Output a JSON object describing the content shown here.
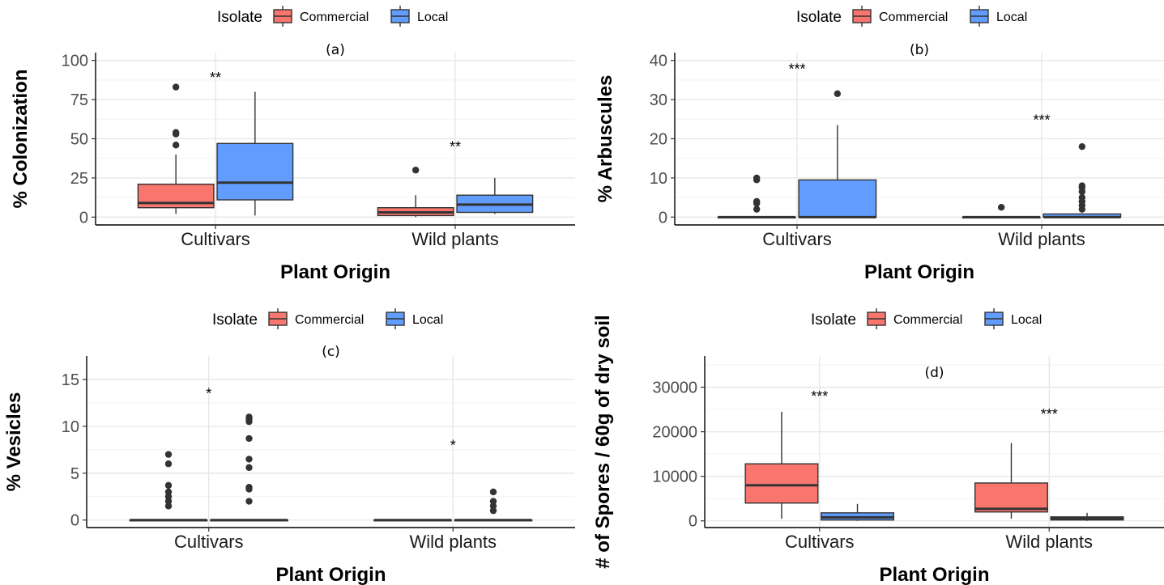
{
  "chart_data": [
    {
      "type": "box",
      "panel_label": "(a)",
      "ylabel": "% Colonization",
      "xlabel": "Plant Origin",
      "legend": {
        "title": "Isolate",
        "entries": [
          "Commercial",
          "Local"
        ],
        "colors": [
          "#F8766D",
          "#619CFF"
        ],
        "position": "top"
      },
      "ylim": [
        -5,
        105
      ],
      "yticks": [
        0,
        25,
        50,
        75,
        100
      ],
      "tick_labels": [
        "0",
        "25",
        "50",
        "75",
        "100"
      ],
      "categories": [
        "Cultivars",
        "Wild plants"
      ],
      "series": [
        {
          "name": "Commercial",
          "color": "#F8766D",
          "boxes": [
            {
              "category": "Cultivars",
              "min": 2,
              "q1": 6,
              "median": 9,
              "q3": 21,
              "max": 40,
              "outliers": [
                46,
                53,
                54,
                83
              ]
            },
            {
              "category": "Wild plants",
              "min": 0,
              "q1": 1,
              "median": 3,
              "q3": 6,
              "max": 14,
              "outliers": [
                30
              ]
            }
          ]
        },
        {
          "name": "Local",
          "color": "#619CFF",
          "boxes": [
            {
              "category": "Cultivars",
              "min": 1,
              "q1": 11,
              "median": 22,
              "q3": 47,
              "max": 80,
              "outliers": []
            },
            {
              "category": "Wild plants",
              "min": 2,
              "q1": 3,
              "median": 8,
              "q3": 14,
              "max": 25,
              "outliers": []
            }
          ]
        }
      ],
      "annotations": [
        {
          "category": "Cultivars",
          "y": 92,
          "text": "**"
        },
        {
          "category": "Wild plants",
          "y": 48,
          "text": "**"
        }
      ]
    },
    {
      "type": "box",
      "panel_label": "(b)",
      "ylabel": "% Arbuscules",
      "xlabel": "Plant Origin",
      "legend": {
        "title": "Isolate",
        "entries": [
          "Commercial",
          "Local"
        ],
        "colors": [
          "#F8766D",
          "#619CFF"
        ],
        "position": "top"
      },
      "ylim": [
        -2,
        42
      ],
      "yticks": [
        0,
        10,
        20,
        30,
        40
      ],
      "tick_labels": [
        "0",
        "10",
        "20",
        "30",
        "40"
      ],
      "categories": [
        "Cultivars",
        "Wild plants"
      ],
      "series": [
        {
          "name": "Commercial",
          "color": "#F8766D",
          "boxes": [
            {
              "category": "Cultivars",
              "min": 0,
              "q1": 0,
              "median": 0,
              "q3": 0,
              "max": 0,
              "outliers": [
                2,
                3.5,
                4,
                9.5,
                10
              ]
            },
            {
              "category": "Wild plants",
              "min": 0,
              "q1": 0,
              "median": 0,
              "q3": 0,
              "max": 0,
              "outliers": [
                2.5
              ]
            }
          ]
        },
        {
          "name": "Local",
          "color": "#619CFF",
          "boxes": [
            {
              "category": "Cultivars",
              "min": 0,
              "q1": 0,
              "median": 0,
              "q3": 9.5,
              "max": 23.5,
              "outliers": [
                31.5
              ]
            },
            {
              "category": "Wild plants",
              "min": 0,
              "q1": 0,
              "median": 0,
              "q3": 0.8,
              "max": 1,
              "outliers": [
                2,
                3,
                4,
                5,
                6.5,
                7.5,
                8,
                18
              ]
            }
          ]
        }
      ],
      "annotations": [
        {
          "category": "Cultivars",
          "y": 39,
          "text": "***"
        },
        {
          "category": "Wild plants",
          "y": 26,
          "text": "***"
        }
      ]
    },
    {
      "type": "box",
      "panel_label": "(c)",
      "ylabel": "% Vesicles",
      "xlabel": "Plant Origin",
      "legend": {
        "title": "Isolate",
        "entries": [
          "Commercial",
          "Local"
        ],
        "colors": [
          "#F8766D",
          "#619CFF"
        ],
        "position": "top"
      },
      "ylim": [
        -0.8,
        17.5
      ],
      "yticks": [
        0,
        5,
        10,
        15
      ],
      "tick_labels": [
        "0",
        "5",
        "10",
        "15"
      ],
      "categories": [
        "Cultivars",
        "Wild plants"
      ],
      "series": [
        {
          "name": "Commercial",
          "color": "#F8766D",
          "boxes": [
            {
              "category": "Cultivars",
              "min": 0,
              "q1": 0,
              "median": 0,
              "q3": 0,
              "max": 0,
              "outliers": [
                1.5,
                2,
                2.5,
                3,
                3.7,
                6,
                7
              ]
            },
            {
              "category": "Wild plants",
              "min": 0,
              "q1": 0,
              "median": 0,
              "q3": 0,
              "max": 0,
              "outliers": []
            }
          ]
        },
        {
          "name": "Local",
          "color": "#619CFF",
          "boxes": [
            {
              "category": "Cultivars",
              "min": 0,
              "q1": 0,
              "median": 0,
              "q3": 0,
              "max": 0,
              "outliers": [
                2,
                3.3,
                3.5,
                5.6,
                6.5,
                8.7,
                10.5,
                10.8,
                11
              ]
            },
            {
              "category": "Wild plants",
              "min": 0,
              "q1": 0,
              "median": 0,
              "q3": 0,
              "max": 0,
              "outliers": [
                1,
                1.5,
                2,
                3
              ]
            }
          ]
        }
      ],
      "annotations": [
        {
          "category": "Cultivars",
          "y": 14,
          "text": "*"
        },
        {
          "category": "Wild plants",
          "y": 8.5,
          "text": "*"
        }
      ]
    },
    {
      "type": "box",
      "panel_label": "(d)",
      "ylabel": "# of Spores / 60g of dry soil",
      "xlabel": "Plant Origin",
      "legend": {
        "title": "Isolate",
        "entries": [
          "Commercial",
          "Local"
        ],
        "colors": [
          "#F8766D",
          "#619CFF"
        ],
        "position": "top"
      },
      "ylim": [
        -1500,
        37000
      ],
      "yticks": [
        0,
        10000,
        20000,
        30000
      ],
      "tick_labels": [
        "0",
        "10000",
        "20000",
        "30000"
      ],
      "categories": [
        "Cultivars",
        "Wild plants"
      ],
      "series": [
        {
          "name": "Commercial",
          "color": "#F8766D",
          "boxes": [
            {
              "category": "Cultivars",
              "min": 500,
              "q1": 4000,
              "median": 8000,
              "q3": 12800,
              "max": 24500,
              "outliers": []
            },
            {
              "category": "Wild plants",
              "min": 500,
              "q1": 2000,
              "median": 2700,
              "q3": 8500,
              "max": 17500,
              "outliers": []
            }
          ]
        },
        {
          "name": "Local",
          "color": "#619CFF",
          "boxes": [
            {
              "category": "Cultivars",
              "min": 0,
              "q1": 200,
              "median": 800,
              "q3": 1800,
              "max": 3800,
              "outliers": []
            },
            {
              "category": "Wild plants",
              "min": 0,
              "q1": 200,
              "median": 500,
              "q3": 900,
              "max": 1800,
              "outliers": []
            }
          ]
        }
      ],
      "annotations": [
        {
          "category": "Cultivars",
          "y": 29000,
          "text": "***"
        },
        {
          "category": "Wild plants",
          "y": 25000,
          "text": "***"
        }
      ]
    }
  ]
}
